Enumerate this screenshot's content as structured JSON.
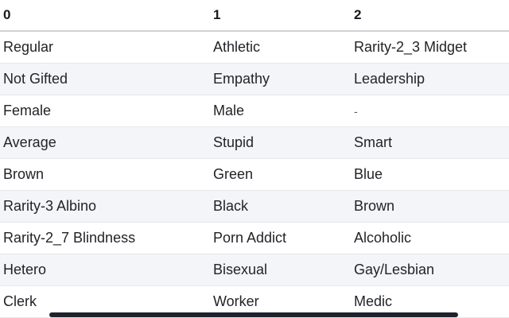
{
  "table": {
    "columns": [
      "0",
      "1",
      "2"
    ],
    "rows": [
      [
        "Regular",
        "Athletic",
        "Rarity-2_3 Midget"
      ],
      [
        "Not Gifted",
        "Empathy",
        "Leadership"
      ],
      [
        "Female",
        "Male",
        "-"
      ],
      [
        "Average",
        "Stupid",
        "Smart"
      ],
      [
        "Brown",
        "Green",
        "Blue"
      ],
      [
        "Rarity-3 Albino",
        "Black",
        "Brown"
      ],
      [
        "Rarity-2_7 Blindness",
        "Porn Addict",
        "Alcoholic"
      ],
      [
        "Hetero",
        "Bisexual",
        "Gay/Lesbian"
      ],
      [
        "Clerk",
        "Worker",
        "Medic"
      ]
    ],
    "null_display": "-"
  },
  "colors": {
    "background": "#ffffff",
    "stripe_row": "#f4f5f8",
    "row_border": "#e5e7ea",
    "header_border": "#cfd1d5",
    "header_text": "#17191c",
    "body_text": "#212428",
    "null_text": "#565b61",
    "scrollbar_thumb": "#1d222c"
  }
}
